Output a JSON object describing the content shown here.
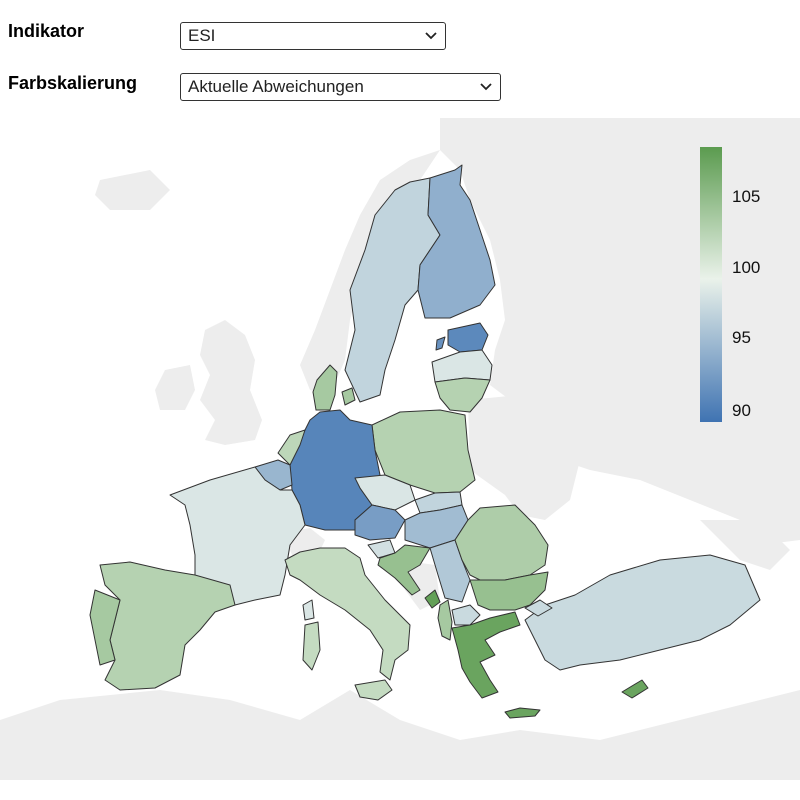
{
  "controls": {
    "indicator_label": "Indikator",
    "indicator_value": "ESI",
    "scale_label": "Farbskalierung",
    "scale_value": "Aktuelle Abweichungen"
  },
  "legend": {
    "ticks": [
      "105",
      "100",
      "95",
      "90"
    ],
    "colors": {
      "high": "#5b9b4f",
      "mid": "#eaf2ea",
      "low": "#3f73b2"
    }
  },
  "map_data": {
    "type": "choropleth",
    "indicator": "ESI",
    "scale": [
      88,
      108
    ],
    "regions": [
      {
        "name": "Germany",
        "value": 89.5
      },
      {
        "name": "Estonia",
        "value": 89.8
      },
      {
        "name": "Lithuania island",
        "value": 90.5
      },
      {
        "name": "Austria",
        "value": 91.5
      },
      {
        "name": "Finland",
        "value": 93
      },
      {
        "name": "Belgium",
        "value": 93.5
      },
      {
        "name": "Hungary",
        "value": 94
      },
      {
        "name": "Sweden",
        "value": 96
      },
      {
        "name": "Latvia",
        "value": 97.5
      },
      {
        "name": "France",
        "value": 97.5
      },
      {
        "name": "Czechia",
        "value": 97.5
      },
      {
        "name": "Slovakia",
        "value": 96
      },
      {
        "name": "Serbia",
        "value": 95
      },
      {
        "name": "Turkey",
        "value": 96.5
      },
      {
        "name": "North Macedonia",
        "value": 96.5
      },
      {
        "name": "Slovenia",
        "value": 97
      },
      {
        "name": "Lithuania",
        "value": 102
      },
      {
        "name": "Poland",
        "value": 102
      },
      {
        "name": "Romania",
        "value": 102.5
      },
      {
        "name": "Netherlands",
        "value": 101.5
      },
      {
        "name": "Italy",
        "value": 101
      },
      {
        "name": "Spain",
        "value": 102
      },
      {
        "name": "Portugal",
        "value": 103
      },
      {
        "name": "Denmark",
        "value": 103
      },
      {
        "name": "Bulgaria",
        "value": 104
      },
      {
        "name": "Croatia",
        "value": 104
      },
      {
        "name": "Greece",
        "value": 107
      },
      {
        "name": "Montenegro",
        "value": 107.5
      },
      {
        "name": "Albania",
        "value": 103
      },
      {
        "name": "Cyprus",
        "value": 107
      }
    ]
  }
}
